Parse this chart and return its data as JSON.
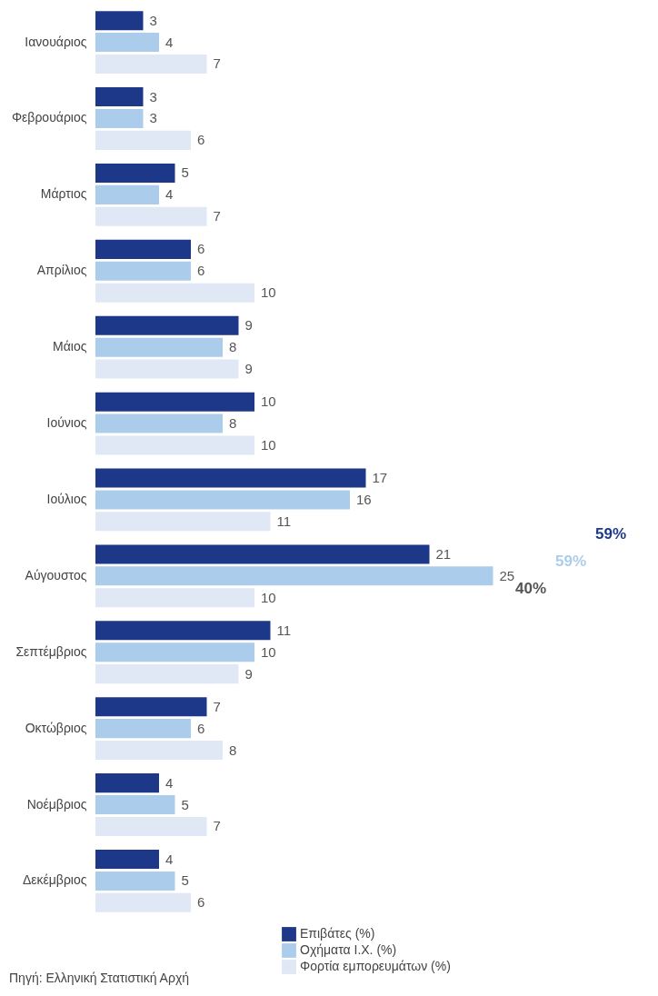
{
  "chart_data": {
    "type": "bar",
    "orientation": "horizontal",
    "data_labels": true,
    "legend": "bottom right",
    "categories": [
      "Ιανουάριος",
      "Φεβρουάριος",
      "Μάρτιος",
      "Απρίλιος",
      "Μάιος",
      "Ιούνιος",
      "Ιούλιος",
      "Αύγουστος",
      "Σεπτέμβριος",
      "Οκτώβριος",
      "Νοέμβριος",
      "Δεκέμβριος"
    ],
    "series": [
      {
        "name": "Επιβάτες (%)",
        "color": "#1d3889",
        "values": [
          3,
          3,
          5,
          6,
          9,
          10,
          17,
          21,
          11,
          7,
          4,
          4
        ]
      },
      {
        "name": "Οχήματα Ι.Χ. (%)",
        "color": "#abcdeb",
        "values": [
          4,
          3,
          4,
          6,
          8,
          8,
          16,
          25,
          10,
          6,
          5,
          5
        ]
      },
      {
        "name": "Φορτία εμπορευμάτων (%)",
        "color": "#e0e7f5",
        "values": [
          7,
          6,
          7,
          10,
          9,
          10,
          11,
          10,
          9,
          8,
          7,
          6
        ]
      }
    ],
    "annotations": [
      "40%",
      "59%",
      "59%",
      "Πηγή: Ελληνική Στατιστική Αρχή"
    ]
  }
}
